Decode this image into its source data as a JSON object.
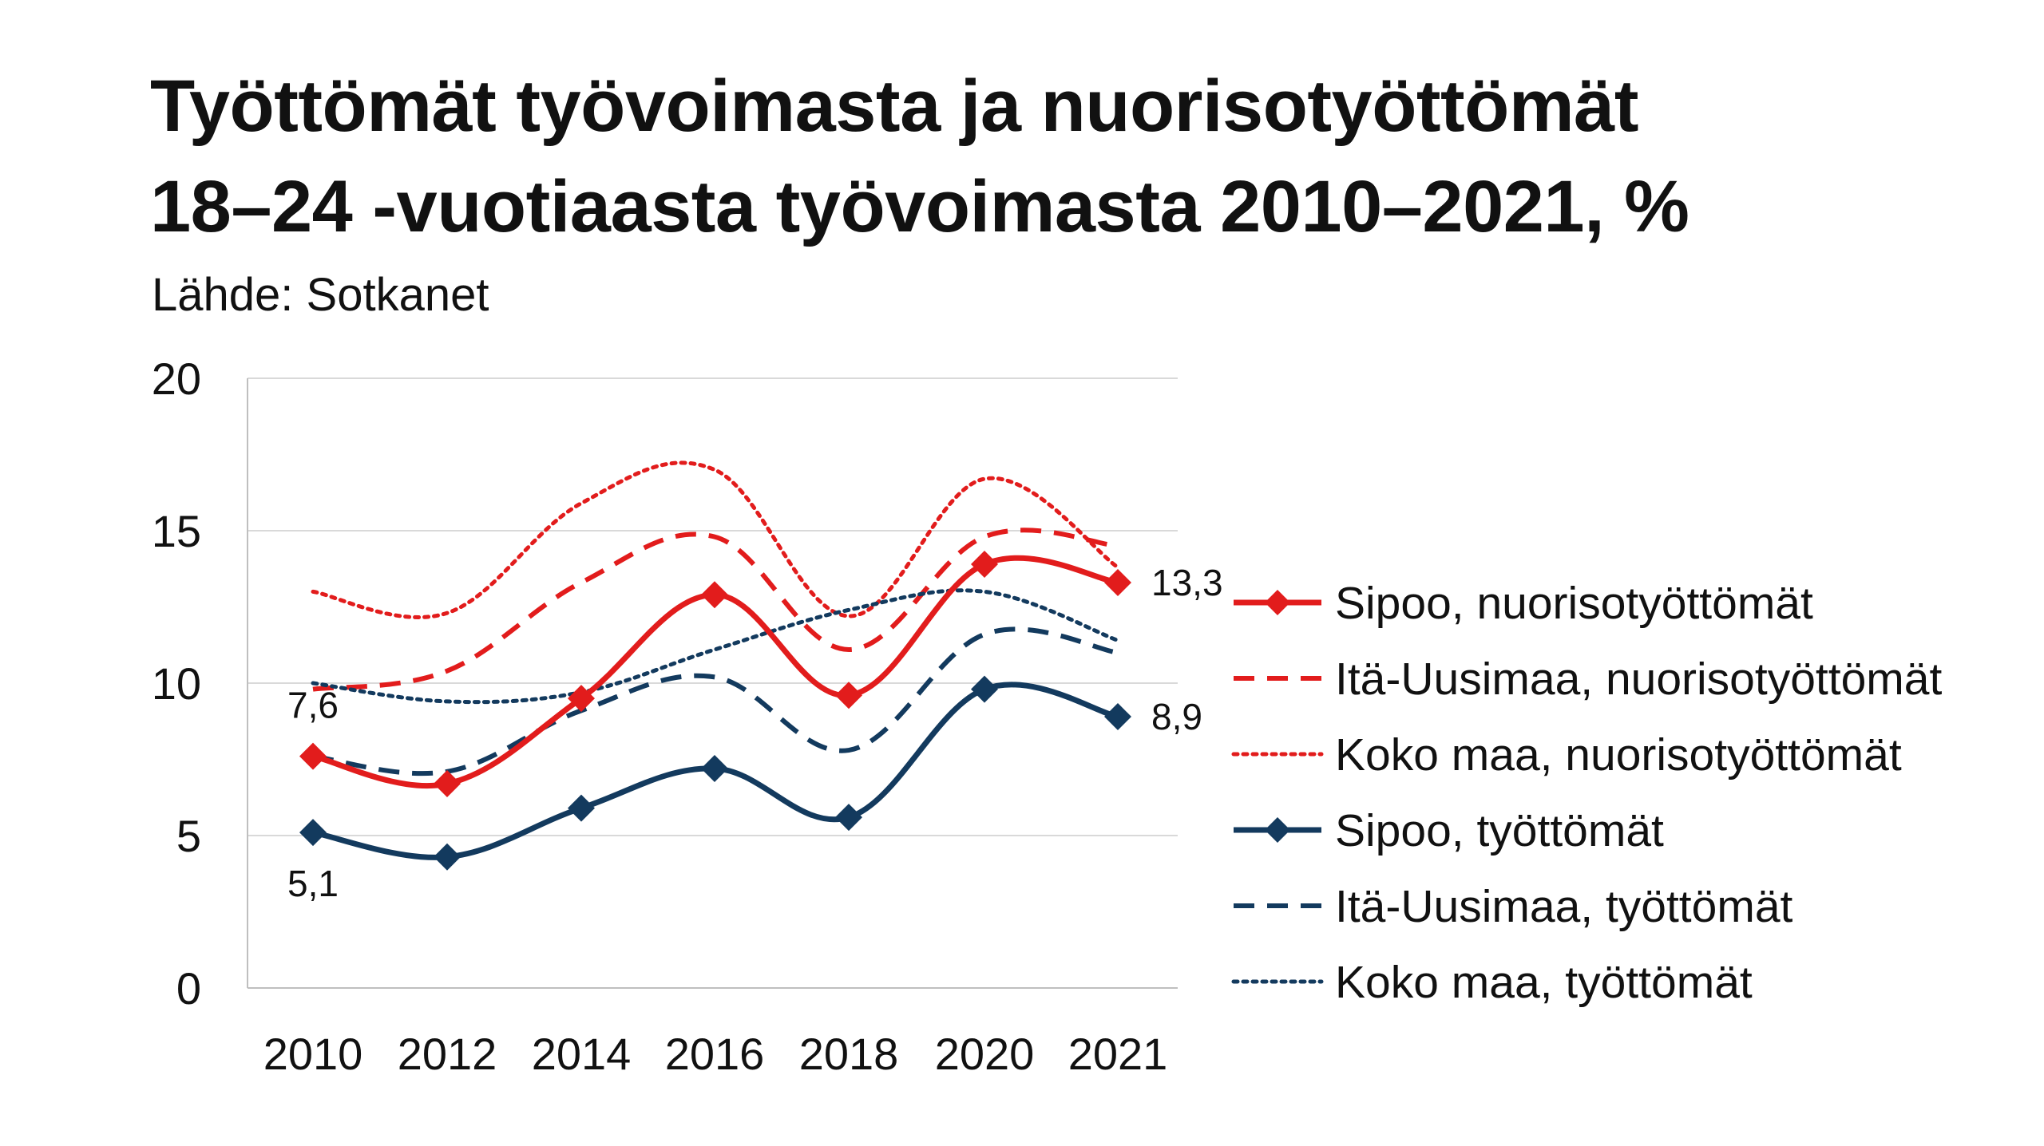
{
  "title": {
    "line1": "Työttömät työvoimasta ja nuorisotyöttömät",
    "line2": "18–24 -vuotiaasta työvoimasta 2010–2021, %"
  },
  "source": "Lähde: Sotkanet",
  "colors": {
    "red": "#e21c1c",
    "navy": "#133a5e",
    "grid": "#d9d9d9",
    "axis": "#bfbfbf"
  },
  "chart_data": {
    "type": "line",
    "x": [
      "2010",
      "2012",
      "2014",
      "2016",
      "2018",
      "2020",
      "2021"
    ],
    "yticks": [
      0,
      5,
      10,
      15,
      20
    ],
    "ylim": [
      0,
      20
    ],
    "grid": true,
    "legend_position": "right",
    "series": [
      {
        "name": "Sipoo, nuorisotyöttömät",
        "values": [
          7.6,
          6.7,
          9.5,
          12.9,
          9.6,
          13.9,
          13.3
        ],
        "color": "#e21c1c",
        "style": "solid",
        "marker": "diamond"
      },
      {
        "name": "Itä-Uusimaa, nuorisotyöttömät",
        "values": [
          9.8,
          10.4,
          13.3,
          14.8,
          11.1,
          14.8,
          14.5
        ],
        "color": "#e21c1c",
        "style": "dashed",
        "marker": "none"
      },
      {
        "name": "Koko maa, nuorisotyöttömät",
        "values": [
          13.0,
          12.3,
          15.9,
          17.0,
          12.2,
          16.7,
          13.8
        ],
        "color": "#e21c1c",
        "style": "dotted",
        "marker": "none"
      },
      {
        "name": "Sipoo, työttömät",
        "values": [
          5.1,
          4.3,
          5.9,
          7.2,
          5.6,
          9.8,
          8.9
        ],
        "color": "#133a5e",
        "style": "solid",
        "marker": "diamond"
      },
      {
        "name": "Itä-Uusimaa, työttömät",
        "values": [
          7.6,
          7.1,
          9.1,
          10.2,
          7.8,
          11.6,
          11.0
        ],
        "color": "#133a5e",
        "style": "dashed",
        "marker": "none"
      },
      {
        "name": "Koko maa, työttömät",
        "values": [
          10.0,
          9.4,
          9.7,
          11.1,
          12.4,
          13.0,
          11.4
        ],
        "color": "#133a5e",
        "style": "dotted",
        "marker": "none"
      }
    ],
    "data_labels": [
      {
        "series": 0,
        "point": 0,
        "text": "7,6",
        "anchor": "above"
      },
      {
        "series": 0,
        "point": 6,
        "text": "13,3",
        "anchor": "right"
      },
      {
        "series": 3,
        "point": 0,
        "text": "5,1",
        "anchor": "below"
      },
      {
        "series": 3,
        "point": 6,
        "text": "8,9",
        "anchor": "right"
      }
    ]
  }
}
